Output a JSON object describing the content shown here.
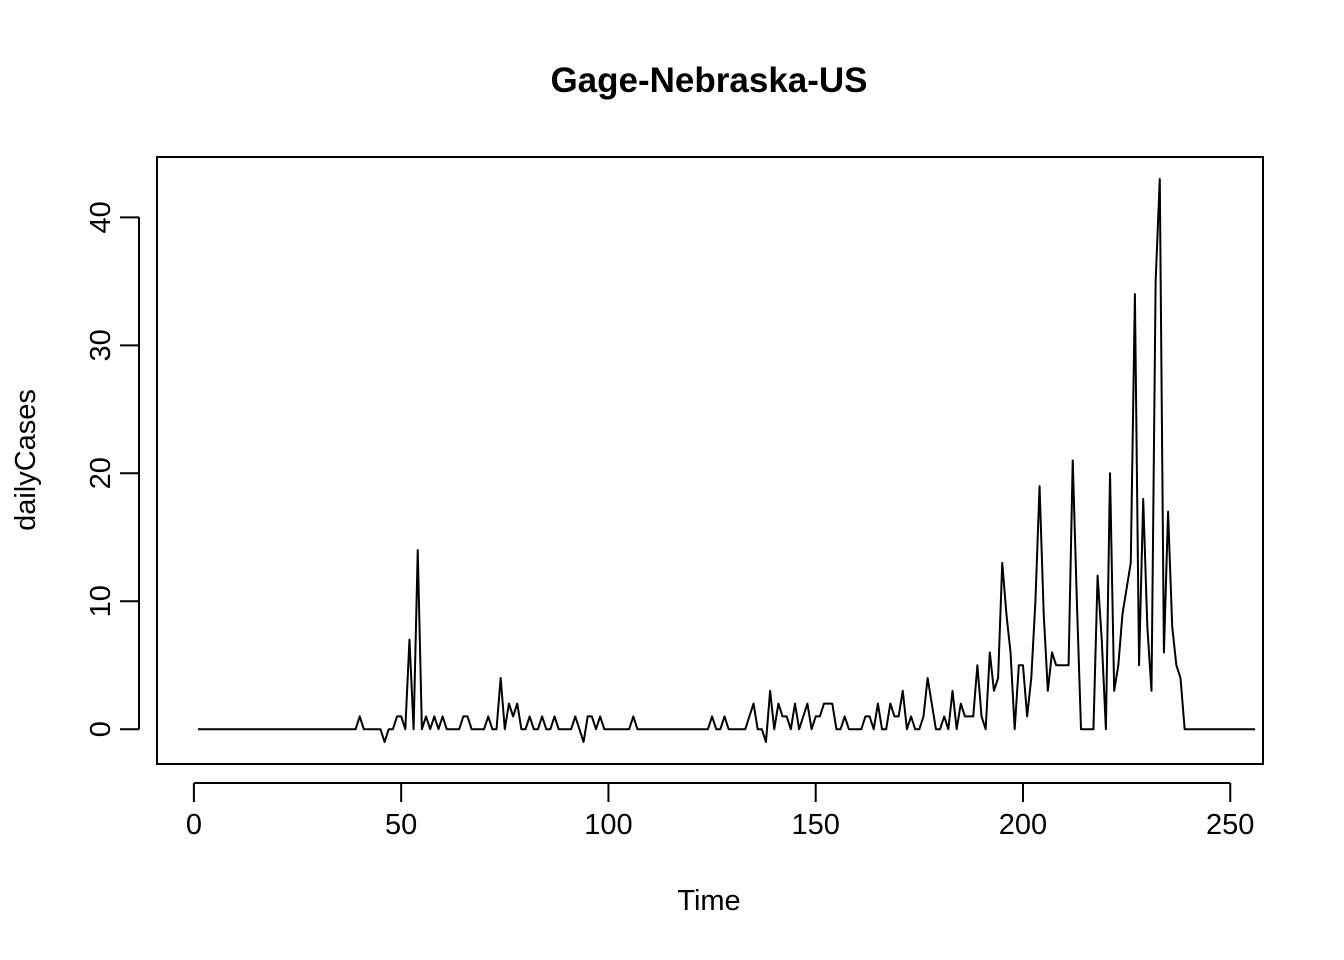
{
  "chart_data": {
    "type": "line",
    "title": "Gage-Nebraska-US",
    "xlabel": "Time",
    "ylabel": "dailyCases",
    "xlim": [
      -8.9,
      257.9
    ],
    "ylim": [
      -2.72,
      44.72
    ],
    "xticks": [
      0,
      50,
      100,
      150,
      200,
      250
    ],
    "yticks": [
      0,
      10,
      20,
      30,
      40
    ],
    "grid": false,
    "legend": "none",
    "line_color": "#000000",
    "x_start": 1,
    "series": [
      {
        "values": [
          0,
          0,
          0,
          0,
          0,
          0,
          0,
          0,
          0,
          0,
          0,
          0,
          0,
          0,
          0,
          0,
          0,
          0,
          0,
          0,
          0,
          0,
          0,
          0,
          0,
          0,
          0,
          0,
          0,
          0,
          0,
          0,
          0,
          0,
          0,
          0,
          0,
          0,
          0,
          1,
          0,
          0,
          0,
          0,
          0,
          -1,
          0,
          0,
          1,
          1,
          0,
          7,
          0,
          14,
          0,
          1,
          0,
          1,
          0,
          1,
          0,
          0,
          0,
          0,
          1,
          1,
          0,
          0,
          0,
          0,
          1,
          0,
          0,
          4,
          0,
          2,
          1,
          2,
          0,
          0,
          1,
          0,
          0,
          1,
          0,
          0,
          1,
          0,
          0,
          0,
          0,
          1,
          0,
          -1,
          1,
          1,
          0,
          1,
          0,
          0,
          0,
          0,
          0,
          0,
          0,
          1,
          0,
          0,
          0,
          0,
          0,
          0,
          0,
          0,
          0,
          0,
          0,
          0,
          0,
          0,
          0,
          0,
          0,
          0,
          1,
          0,
          0,
          1,
          0,
          0,
          0,
          0,
          0,
          1,
          2,
          0,
          0,
          -1,
          3,
          0,
          2,
          1,
          1,
          0,
          2,
          0,
          1,
          2,
          0,
          1,
          1,
          2,
          2,
          2,
          0,
          0,
          1,
          0,
          0,
          0,
          0,
          1,
          1,
          0,
          2,
          0,
          0,
          2,
          1,
          1,
          3,
          0,
          1,
          0,
          0,
          1,
          4,
          2,
          0,
          0,
          1,
          0,
          3,
          0,
          2,
          1,
          1,
          1,
          5,
          1,
          0,
          6,
          3,
          4,
          13,
          9,
          6,
          0,
          5,
          5,
          1,
          4,
          10,
          19,
          9,
          3,
          6,
          5,
          5,
          5,
          5,
          21,
          10,
          0,
          0,
          0,
          0,
          12,
          7,
          0,
          20,
          3,
          5,
          9,
          11,
          13,
          34,
          5,
          18,
          8,
          3,
          35,
          43,
          6,
          17,
          8,
          5,
          4,
          0,
          0,
          0,
          0,
          0,
          0,
          0,
          0,
          0,
          0,
          0,
          0,
          0,
          0,
          0,
          0,
          0,
          0
        ]
      }
    ]
  }
}
